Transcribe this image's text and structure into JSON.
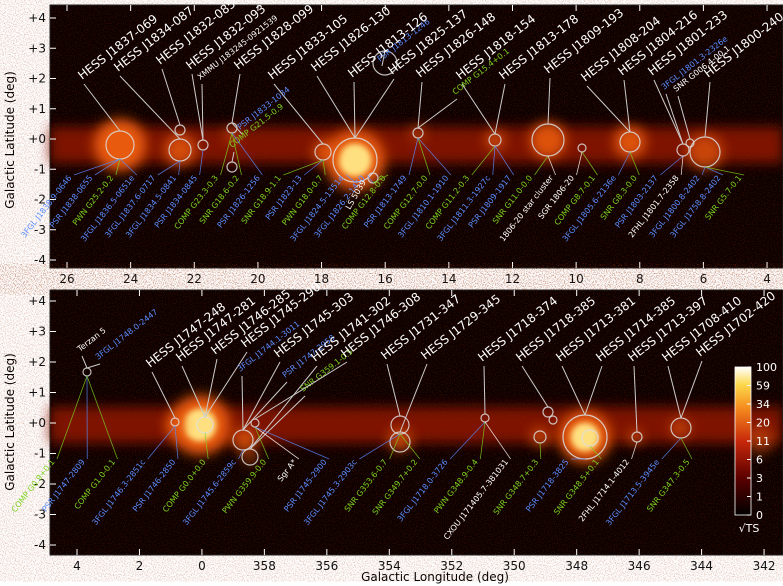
{
  "y_axis_label": "Galactic Latitude (deg)",
  "x_axis_label": "Galactic Longitude (deg)",
  "panels": [
    {
      "xticks": [
        26,
        24,
        22,
        20,
        18,
        16,
        14,
        12,
        10,
        8,
        6,
        4
      ],
      "yticks": [
        {
          "value": 4,
          "label": "+4"
        },
        {
          "value": 3,
          "label": "+3"
        },
        {
          "value": 2,
          "label": "+2"
        },
        {
          "value": 1,
          "label": "+1"
        },
        {
          "value": 0,
          "label": "+0"
        },
        {
          "value": -1,
          "label": "-1"
        },
        {
          "value": -2,
          "label": "-2"
        },
        {
          "value": -3,
          "label": "-3"
        },
        {
          "value": -4,
          "label": "-4"
        }
      ],
      "upper_labels": [
        {
          "text": "HESS J1837-069",
          "color": "#ffffff"
        },
        {
          "text": "HESS J1834-087",
          "color": "#ffffff"
        },
        {
          "text": "HESS J1832-085",
          "color": "#ffffff"
        },
        {
          "text": "HESS J1832-093",
          "color": "#ffffff"
        },
        {
          "text": "XMMU J183245-0921539",
          "color": "#ffffff"
        },
        {
          "text": "HESS J1828-099",
          "color": "#ffffff"
        },
        {
          "text": "HESS J1833-105",
          "color": "#ffffff"
        },
        {
          "text": "HESS J1826-130",
          "color": "#ffffff"
        },
        {
          "text": "PSR J1813-1246",
          "color": "#5a8cff"
        },
        {
          "text": "HESS J1813-126",
          "color": "#ffffff"
        },
        {
          "text": "HESS J1825-137",
          "color": "#ffffff"
        },
        {
          "text": "HESS J1826-148",
          "color": "#ffffff"
        },
        {
          "text": "HESS J1818-154",
          "color": "#ffffff"
        },
        {
          "text": "COMP G15.4+0.1",
          "color": "#7ed321"
        },
        {
          "text": "HESS J1813-178",
          "color": "#ffffff"
        },
        {
          "text": "HESS J1809-193",
          "color": "#ffffff"
        },
        {
          "text": "HESS J1808-204",
          "color": "#ffffff"
        },
        {
          "text": "HESS J1804-216",
          "color": "#ffffff"
        },
        {
          "text": "HESS J1801-233",
          "color": "#ffffff"
        },
        {
          "text": "3FGL J1801.3-2326e",
          "color": "#5a8cff"
        },
        {
          "text": "SNR G006.4-00.1",
          "color": "#ffffff"
        },
        {
          "text": "HESS J1800-240",
          "color": "#ffffff"
        },
        {
          "text": "COMP G21.5-0.9",
          "color": "#7ed321"
        },
        {
          "text": "PSR J1833-1034",
          "color": "#5a8cff"
        }
      ],
      "lower_labels": [
        {
          "text": "3FGL J1838.9-0646",
          "color": "#5a8cff"
        },
        {
          "text": "PSR J1838-0655",
          "color": "#5a8cff"
        },
        {
          "text": "PWN G25.2-0.2",
          "color": "#7ed321"
        },
        {
          "text": "3FGL J1836.5-0651e",
          "color": "#5a8cff"
        },
        {
          "text": "3FGL J1837.6-0717",
          "color": "#5a8cff"
        },
        {
          "text": "3FGL J1834.5-0841",
          "color": "#5a8cff"
        },
        {
          "text": "PSR J1834-0845",
          "color": "#5a8cff"
        },
        {
          "text": "COMP G23.3-0.3",
          "color": "#7ed321"
        },
        {
          "text": "SNR G18.6-0.2",
          "color": "#7ed321"
        },
        {
          "text": "PSR J1826-1256",
          "color": "#5a8cff"
        },
        {
          "text": "SNR G18.9-1.1",
          "color": "#7ed321"
        },
        {
          "text": "PSR J1823-13",
          "color": "#5a8cff"
        },
        {
          "text": "PWN G18.0-0.7",
          "color": "#7ed321"
        },
        {
          "text": "3FGL J1824.5-1351e",
          "color": "#5a8cff"
        },
        {
          "text": "3FGL J1826.2-1450",
          "color": "#5a8cff"
        },
        {
          "text": "COMP G12.8-0.0",
          "color": "#7ed321"
        },
        {
          "text": "PSR J1813-1749",
          "color": "#5a8cff"
        },
        {
          "text": "COMP G12.7-0.0",
          "color": "#7ed321"
        },
        {
          "text": "3FGL J1810.1-1910",
          "color": "#5a8cff"
        },
        {
          "text": "COMP G11.2-0.3",
          "color": "#7ed321"
        },
        {
          "text": "3FGL J1811.3-1927c",
          "color": "#5a8cff"
        },
        {
          "text": "PSR J1809-1917",
          "color": "#5a8cff"
        },
        {
          "text": "SNR G11.0-0.0",
          "color": "#7ed321"
        },
        {
          "text": "1806-20 star cluster",
          "color": "#ffffff"
        },
        {
          "text": "SGR 1806-20",
          "color": "#ffffff"
        },
        {
          "text": "COMP G8.7-0.1",
          "color": "#7ed321"
        },
        {
          "text": "3FGL J1805.6-2136e",
          "color": "#5a8cff"
        },
        {
          "text": "SNR G8.3-0.0",
          "color": "#7ed321"
        },
        {
          "text": "PSR J1803-2137",
          "color": "#5a8cff"
        },
        {
          "text": "2FHL J1801.7-2358",
          "color": "#ffffff"
        },
        {
          "text": "3FGL J1800.8-2402",
          "color": "#5a8cff"
        },
        {
          "text": "3FGL J1758.8-2402",
          "color": "#5a8cff"
        },
        {
          "text": "SNR G5.7-0.1",
          "color": "#7ed321"
        }
      ],
      "extra_labels": [
        {
          "text": "LS 5039",
          "color": "#ffffff"
        }
      ]
    },
    {
      "xticks": [
        4,
        2,
        0,
        358,
        356,
        354,
        352,
        350,
        348,
        346,
        344,
        342
      ],
      "yticks": [
        {
          "value": 4,
          "label": "+4"
        },
        {
          "value": 3,
          "label": "+3"
        },
        {
          "value": 2,
          "label": "+2"
        },
        {
          "value": 1,
          "label": "+1"
        },
        {
          "value": 0,
          "label": "+0"
        },
        {
          "value": -1,
          "label": "-1"
        },
        {
          "value": -2,
          "label": "-2"
        },
        {
          "value": -3,
          "label": "-3"
        },
        {
          "value": -4,
          "label": "-4"
        }
      ],
      "upper_labels": [
        {
          "text": "Terzan 5",
          "color": "#ffffff"
        },
        {
          "text": "3FGL J1748.0-2447",
          "color": "#5a8cff"
        },
        {
          "text": "HESS J1747-248",
          "color": "#ffffff"
        },
        {
          "text": "HESS J1747-281",
          "color": "#ffffff"
        },
        {
          "text": "HESS J1746-285",
          "color": "#ffffff"
        },
        {
          "text": "HESS J1745-290",
          "color": "#ffffff"
        },
        {
          "text": "3FGL J1744.1-3011",
          "color": "#5a8cff"
        },
        {
          "text": "HESS J1745-303",
          "color": "#ffffff"
        },
        {
          "text": "PSR J1747-2958",
          "color": "#5a8cff"
        },
        {
          "text": "HESS J1741-302",
          "color": "#ffffff"
        },
        {
          "text": "SNR G359.1-0.5",
          "color": "#7ed321"
        },
        {
          "text": "HESS J1746-308",
          "color": "#ffffff"
        },
        {
          "text": "HESS J1731-347",
          "color": "#ffffff"
        },
        {
          "text": "HESS J1729-345",
          "color": "#ffffff"
        },
        {
          "text": "HESS J1718-374",
          "color": "#ffffff"
        },
        {
          "text": "HESS J1718-385",
          "color": "#ffffff"
        },
        {
          "text": "HESS J1713-381",
          "color": "#ffffff"
        },
        {
          "text": "HESS J1714-385",
          "color": "#ffffff"
        },
        {
          "text": "HESS J1713-397",
          "color": "#ffffff"
        },
        {
          "text": "HESS J1708-410",
          "color": "#ffffff"
        },
        {
          "text": "HESS J1702-420",
          "color": "#ffffff"
        }
      ],
      "lower_labels": [
        {
          "text": "COMP G0.9+0.1",
          "color": "#7ed321"
        },
        {
          "text": "PSR J1747-2809",
          "color": "#5a8cff"
        },
        {
          "text": "COMP G1.0-0.1",
          "color": "#7ed321"
        },
        {
          "text": "3FGL J1746.3-2851c",
          "color": "#5a8cff"
        },
        {
          "text": "PSR J1746-2850",
          "color": "#5a8cff"
        },
        {
          "text": "COMP G0.0+0.0",
          "color": "#7ed321"
        },
        {
          "text": "3FGL J1745.6-2859c",
          "color": "#5a8cff"
        },
        {
          "text": "PWN G359.9-0.0",
          "color": "#7ed321"
        },
        {
          "text": "Sgr A*",
          "color": "#ffffff"
        },
        {
          "text": "PSR J1745-2900",
          "color": "#5a8cff"
        },
        {
          "text": "3FGL J1745.3-2903c",
          "color": "#5a8cff"
        },
        {
          "text": "SNR G353.6-0.7",
          "color": "#7ed321"
        },
        {
          "text": "SNR G349.7+0.2",
          "color": "#7ed321"
        },
        {
          "text": "3FGL J1718.0-3726",
          "color": "#5a8cff"
        },
        {
          "text": "PWN G348.9-0.4",
          "color": "#7ed321"
        },
        {
          "text": "CXOU J171405.7-381031",
          "color": "#ffffff"
        },
        {
          "text": "SNR G348.7+0.3",
          "color": "#7ed321"
        },
        {
          "text": "PSR J1718-3825",
          "color": "#5a8cff"
        },
        {
          "text": "SNR G348.5+0.1",
          "color": "#7ed321"
        },
        {
          "text": "2FHL J1714.1-4012",
          "color": "#ffffff"
        },
        {
          "text": "3FGL J1713.5-3945e",
          "color": "#5a8cff"
        },
        {
          "text": "SNR G347.3-0.5",
          "color": "#7ed321"
        }
      ],
      "extra_labels": []
    }
  ],
  "colorbar": {
    "ticks": [
      0,
      1,
      3,
      6,
      11,
      20,
      34,
      59,
      100
    ],
    "label": "√TS"
  }
}
